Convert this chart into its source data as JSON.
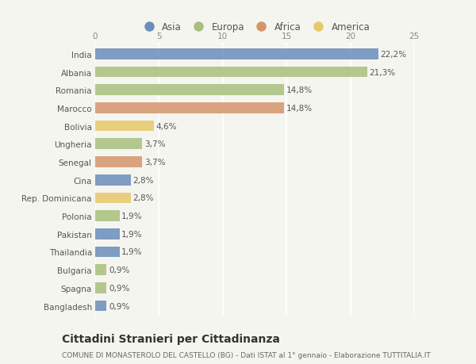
{
  "countries": [
    "India",
    "Albania",
    "Romania",
    "Marocco",
    "Bolivia",
    "Ungheria",
    "Senegal",
    "Cina",
    "Rep. Dominicana",
    "Polonia",
    "Pakistan",
    "Thailandia",
    "Bulgaria",
    "Spagna",
    "Bangladesh"
  ],
  "values": [
    22.2,
    21.3,
    14.8,
    14.8,
    4.6,
    3.7,
    3.7,
    2.8,
    2.8,
    1.9,
    1.9,
    1.9,
    0.9,
    0.9,
    0.9
  ],
  "labels": [
    "22,2%",
    "21,3%",
    "14,8%",
    "14,8%",
    "4,6%",
    "3,7%",
    "3,7%",
    "2,8%",
    "2,8%",
    "1,9%",
    "1,9%",
    "1,9%",
    "0,9%",
    "0,9%",
    "0,9%"
  ],
  "continents": [
    "Asia",
    "Europa",
    "Europa",
    "Africa",
    "America",
    "Europa",
    "Africa",
    "Asia",
    "America",
    "Europa",
    "Asia",
    "Asia",
    "Europa",
    "Europa",
    "Asia"
  ],
  "colors": {
    "Asia": "#6b8dba",
    "Europa": "#a8bf7d",
    "Africa": "#d4956b",
    "America": "#e8c86a"
  },
  "legend_order": [
    "Asia",
    "Europa",
    "Africa",
    "America"
  ],
  "title": "Cittadini Stranieri per Cittadinanza",
  "subtitle": "COMUNE DI MONASTEROLO DEL CASTELLO (BG) - Dati ISTAT al 1° gennaio - Elaborazione TUTTITALIA.IT",
  "xlim": [
    0,
    25
  ],
  "xticks": [
    0,
    5,
    10,
    15,
    20,
    25
  ],
  "background_color": "#f5f5f0",
  "bar_height": 0.6,
  "title_fontsize": 10,
  "subtitle_fontsize": 6.5,
  "label_fontsize": 7.5,
  "tick_fontsize": 7.5,
  "legend_fontsize": 8.5
}
